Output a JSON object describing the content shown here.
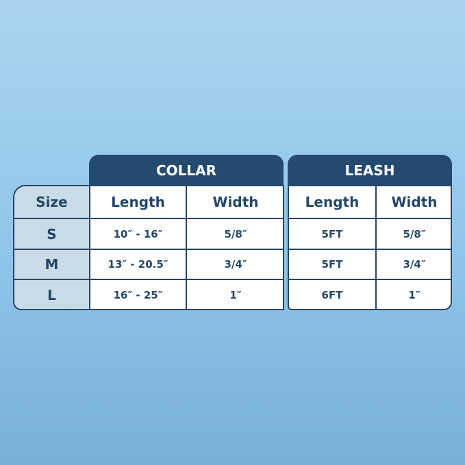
{
  "size_column": {
    "header": "Size",
    "rows": [
      "S",
      "M",
      "L"
    ]
  },
  "collar": {
    "title": "COLLAR",
    "columns": [
      "Length",
      "Width"
    ],
    "rows": [
      [
        "10″ - 16″",
        "5/8″"
      ],
      [
        "13″ - 20.5″",
        "3/4″"
      ],
      [
        "16″ - 25″",
        "1″"
      ]
    ]
  },
  "leash": {
    "title": "LEASH",
    "columns": [
      "Length",
      "Width"
    ],
    "rows": [
      [
        "5FT",
        "5/8″"
      ],
      [
        "5FT",
        "3/4″"
      ],
      [
        "6FT",
        "1″"
      ]
    ]
  },
  "colors": {
    "header": "#254a6f",
    "size_column": "#c9dbe6",
    "border": "#234668"
  }
}
